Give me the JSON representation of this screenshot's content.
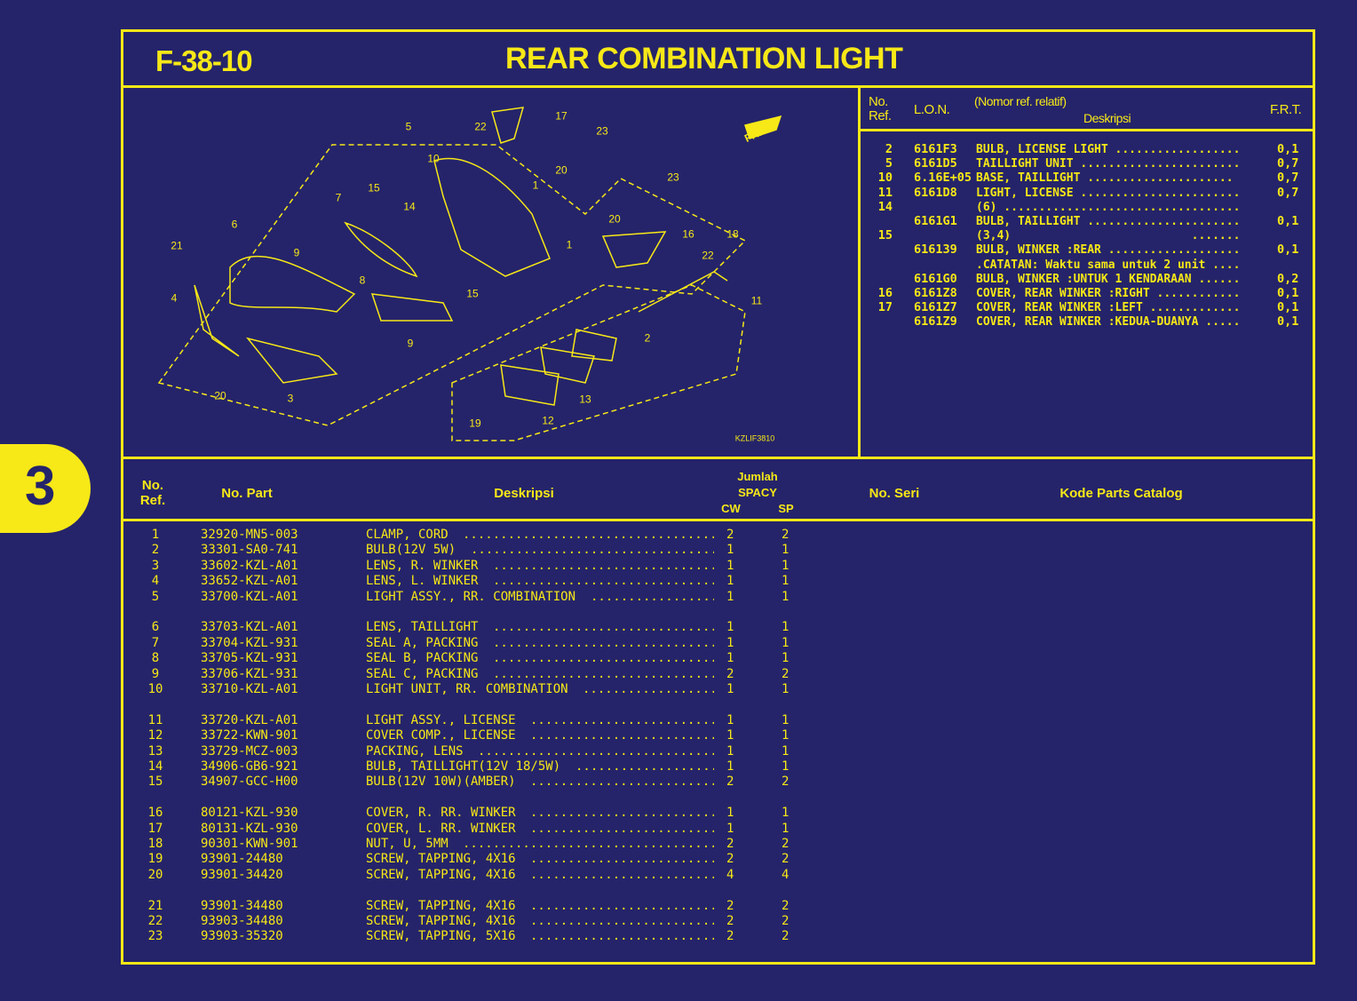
{
  "header": {
    "code": "F-38-10",
    "title": "REAR COMBINATION LIGHT"
  },
  "section_tab": "3",
  "diagram": {
    "drawing_code": "KZLIF3810",
    "front_marker": "FR.",
    "callouts": [
      "5",
      "22",
      "17",
      "23",
      "10",
      "20",
      "1",
      "23",
      "15",
      "14",
      "20",
      "7",
      "6",
      "21",
      "9",
      "8",
      "16",
      "18",
      "22",
      "1",
      "15",
      "4",
      "11",
      "9",
      "2",
      "20",
      "3",
      "13",
      "12",
      "19"
    ]
  },
  "frt_table": {
    "headers": {
      "ref": "No.\nRef.",
      "lon": "L.O.N.",
      "note": "(Nomor ref. relatif)",
      "desc": "Deskripsi",
      "frt": "F.R.T."
    },
    "rows": [
      {
        "ref": "2",
        "lon": "6161F3",
        "desc": "BULB, LICENSE LIGHT ..................",
        "frt": "0,1"
      },
      {
        "ref": "5",
        "lon": "6161D5",
        "desc": "TAILLIGHT UNIT .......................",
        "frt": "0,7"
      },
      {
        "ref": "10",
        "lon": "6.16E+05",
        "desc": "BASE, TAILLIGHT .....................",
        "frt": "0,7"
      },
      {
        "ref": "11",
        "lon": "6161D8",
        "desc": "LIGHT, LICENSE .......................",
        "frt": "0,7"
      },
      {
        "ref": "14",
        "lon": "",
        "desc": "(6) ..................................",
        "frt": ""
      },
      {
        "ref": "",
        "lon": "6161G1",
        "desc": "BULB, TAILLIGHT ......................",
        "frt": "0,1"
      },
      {
        "ref": "15",
        "lon": "",
        "desc": "(3,4)                          .......",
        "frt": ""
      },
      {
        "ref": "",
        "lon": "616139",
        "desc": "BULB, WINKER :REAR ...................",
        "frt": "0,1"
      },
      {
        "ref": "",
        "lon": "",
        "desc": ".CATATAN: Waktu sama untuk 2 unit ....",
        "frt": ""
      },
      {
        "ref": "",
        "lon": "6161G0",
        "desc": "BULB, WINKER :UNTUK 1 KENDARAAN ......",
        "frt": "0,2"
      },
      {
        "ref": "16",
        "lon": "6161Z8",
        "desc": "COVER, REAR WINKER :RIGHT ............",
        "frt": "0,1"
      },
      {
        "ref": "17",
        "lon": "6161Z7",
        "desc": "COVER, REAR WINKER :LEFT .............",
        "frt": "0,1"
      },
      {
        "ref": "",
        "lon": "6161Z9",
        "desc": "COVER, REAR WINKER :KEDUA-DUANYA .....",
        "frt": "0,1"
      }
    ]
  },
  "parts_table": {
    "headers": {
      "ref": "No.\nRef.",
      "part": "No. Part",
      "desc": "Deskripsi",
      "qty": "Jumlah",
      "spacy": "SPACY",
      "cw": "CW",
      "sp": "SP",
      "serial": "No. Seri",
      "catalog": "Kode Parts Catalog"
    },
    "rows": [
      {
        "ref": "1",
        "part": "32920-MN5-003",
        "desc": "CLAMP, CORD",
        "cw": "2",
        "sp": "2"
      },
      {
        "ref": "2",
        "part": "33301-SA0-741",
        "desc": "BULB(12V 5W)",
        "cw": "1",
        "sp": "1"
      },
      {
        "ref": "3",
        "part": "33602-KZL-A01",
        "desc": "LENS, R. WINKER",
        "cw": "1",
        "sp": "1"
      },
      {
        "ref": "4",
        "part": "33652-KZL-A01",
        "desc": "LENS, L. WINKER",
        "cw": "1",
        "sp": "1"
      },
      {
        "ref": "5",
        "part": "33700-KZL-A01",
        "desc": "LIGHT ASSY., RR. COMBINATION",
        "cw": "1",
        "sp": "1"
      },
      {
        "ref": "6",
        "part": "33703-KZL-A01",
        "desc": "LENS, TAILLIGHT",
        "cw": "1",
        "sp": "1"
      },
      {
        "ref": "7",
        "part": "33704-KZL-931",
        "desc": "SEAL A, PACKING",
        "cw": "1",
        "sp": "1"
      },
      {
        "ref": "8",
        "part": "33705-KZL-931",
        "desc": "SEAL B, PACKING",
        "cw": "1",
        "sp": "1"
      },
      {
        "ref": "9",
        "part": "33706-KZL-931",
        "desc": "SEAL C, PACKING",
        "cw": "2",
        "sp": "2"
      },
      {
        "ref": "10",
        "part": "33710-KZL-A01",
        "desc": "LIGHT UNIT, RR. COMBINATION",
        "cw": "1",
        "sp": "1"
      },
      {
        "ref": "11",
        "part": "33720-KZL-A01",
        "desc": "LIGHT ASSY., LICENSE",
        "cw": "1",
        "sp": "1"
      },
      {
        "ref": "12",
        "part": "33722-KWN-901",
        "desc": "COVER COMP., LICENSE",
        "cw": "1",
        "sp": "1"
      },
      {
        "ref": "13",
        "part": "33729-MCZ-003",
        "desc": "PACKING, LENS",
        "cw": "1",
        "sp": "1"
      },
      {
        "ref": "14",
        "part": "34906-GB6-921",
        "desc": "BULB, TAILLIGHT(12V 18/5W)",
        "cw": "1",
        "sp": "1"
      },
      {
        "ref": "15",
        "part": "34907-GCC-H00",
        "desc": "BULB(12V 10W)(AMBER)",
        "cw": "2",
        "sp": "2"
      },
      {
        "ref": "16",
        "part": "80121-KZL-930",
        "desc": "COVER, R. RR. WINKER",
        "cw": "1",
        "sp": "1"
      },
      {
        "ref": "17",
        "part": "80131-KZL-930",
        "desc": "COVER, L. RR. WINKER",
        "cw": "1",
        "sp": "1"
      },
      {
        "ref": "18",
        "part": "90301-KWN-901",
        "desc": "NUT, U, 5MM",
        "cw": "2",
        "sp": "2"
      },
      {
        "ref": "19",
        "part": "93901-24480",
        "desc": "SCREW, TAPPING, 4X16",
        "cw": "2",
        "sp": "2"
      },
      {
        "ref": "20",
        "part": "93901-34420",
        "desc": "SCREW, TAPPING, 4X16",
        "cw": "4",
        "sp": "4"
      },
      {
        "ref": "21",
        "part": "93901-34480",
        "desc": "SCREW, TAPPING, 4X16",
        "cw": "2",
        "sp": "2"
      },
      {
        "ref": "22",
        "part": "93903-34480",
        "desc": "SCREW, TAPPING, 4X16",
        "cw": "2",
        "sp": "2"
      },
      {
        "ref": "23",
        "part": "93903-35320",
        "desc": "SCREW, TAPPING, 5X16",
        "cw": "2",
        "sp": "2"
      }
    ]
  },
  "colors": {
    "background": "#25246a",
    "accent": "#f7e817"
  }
}
